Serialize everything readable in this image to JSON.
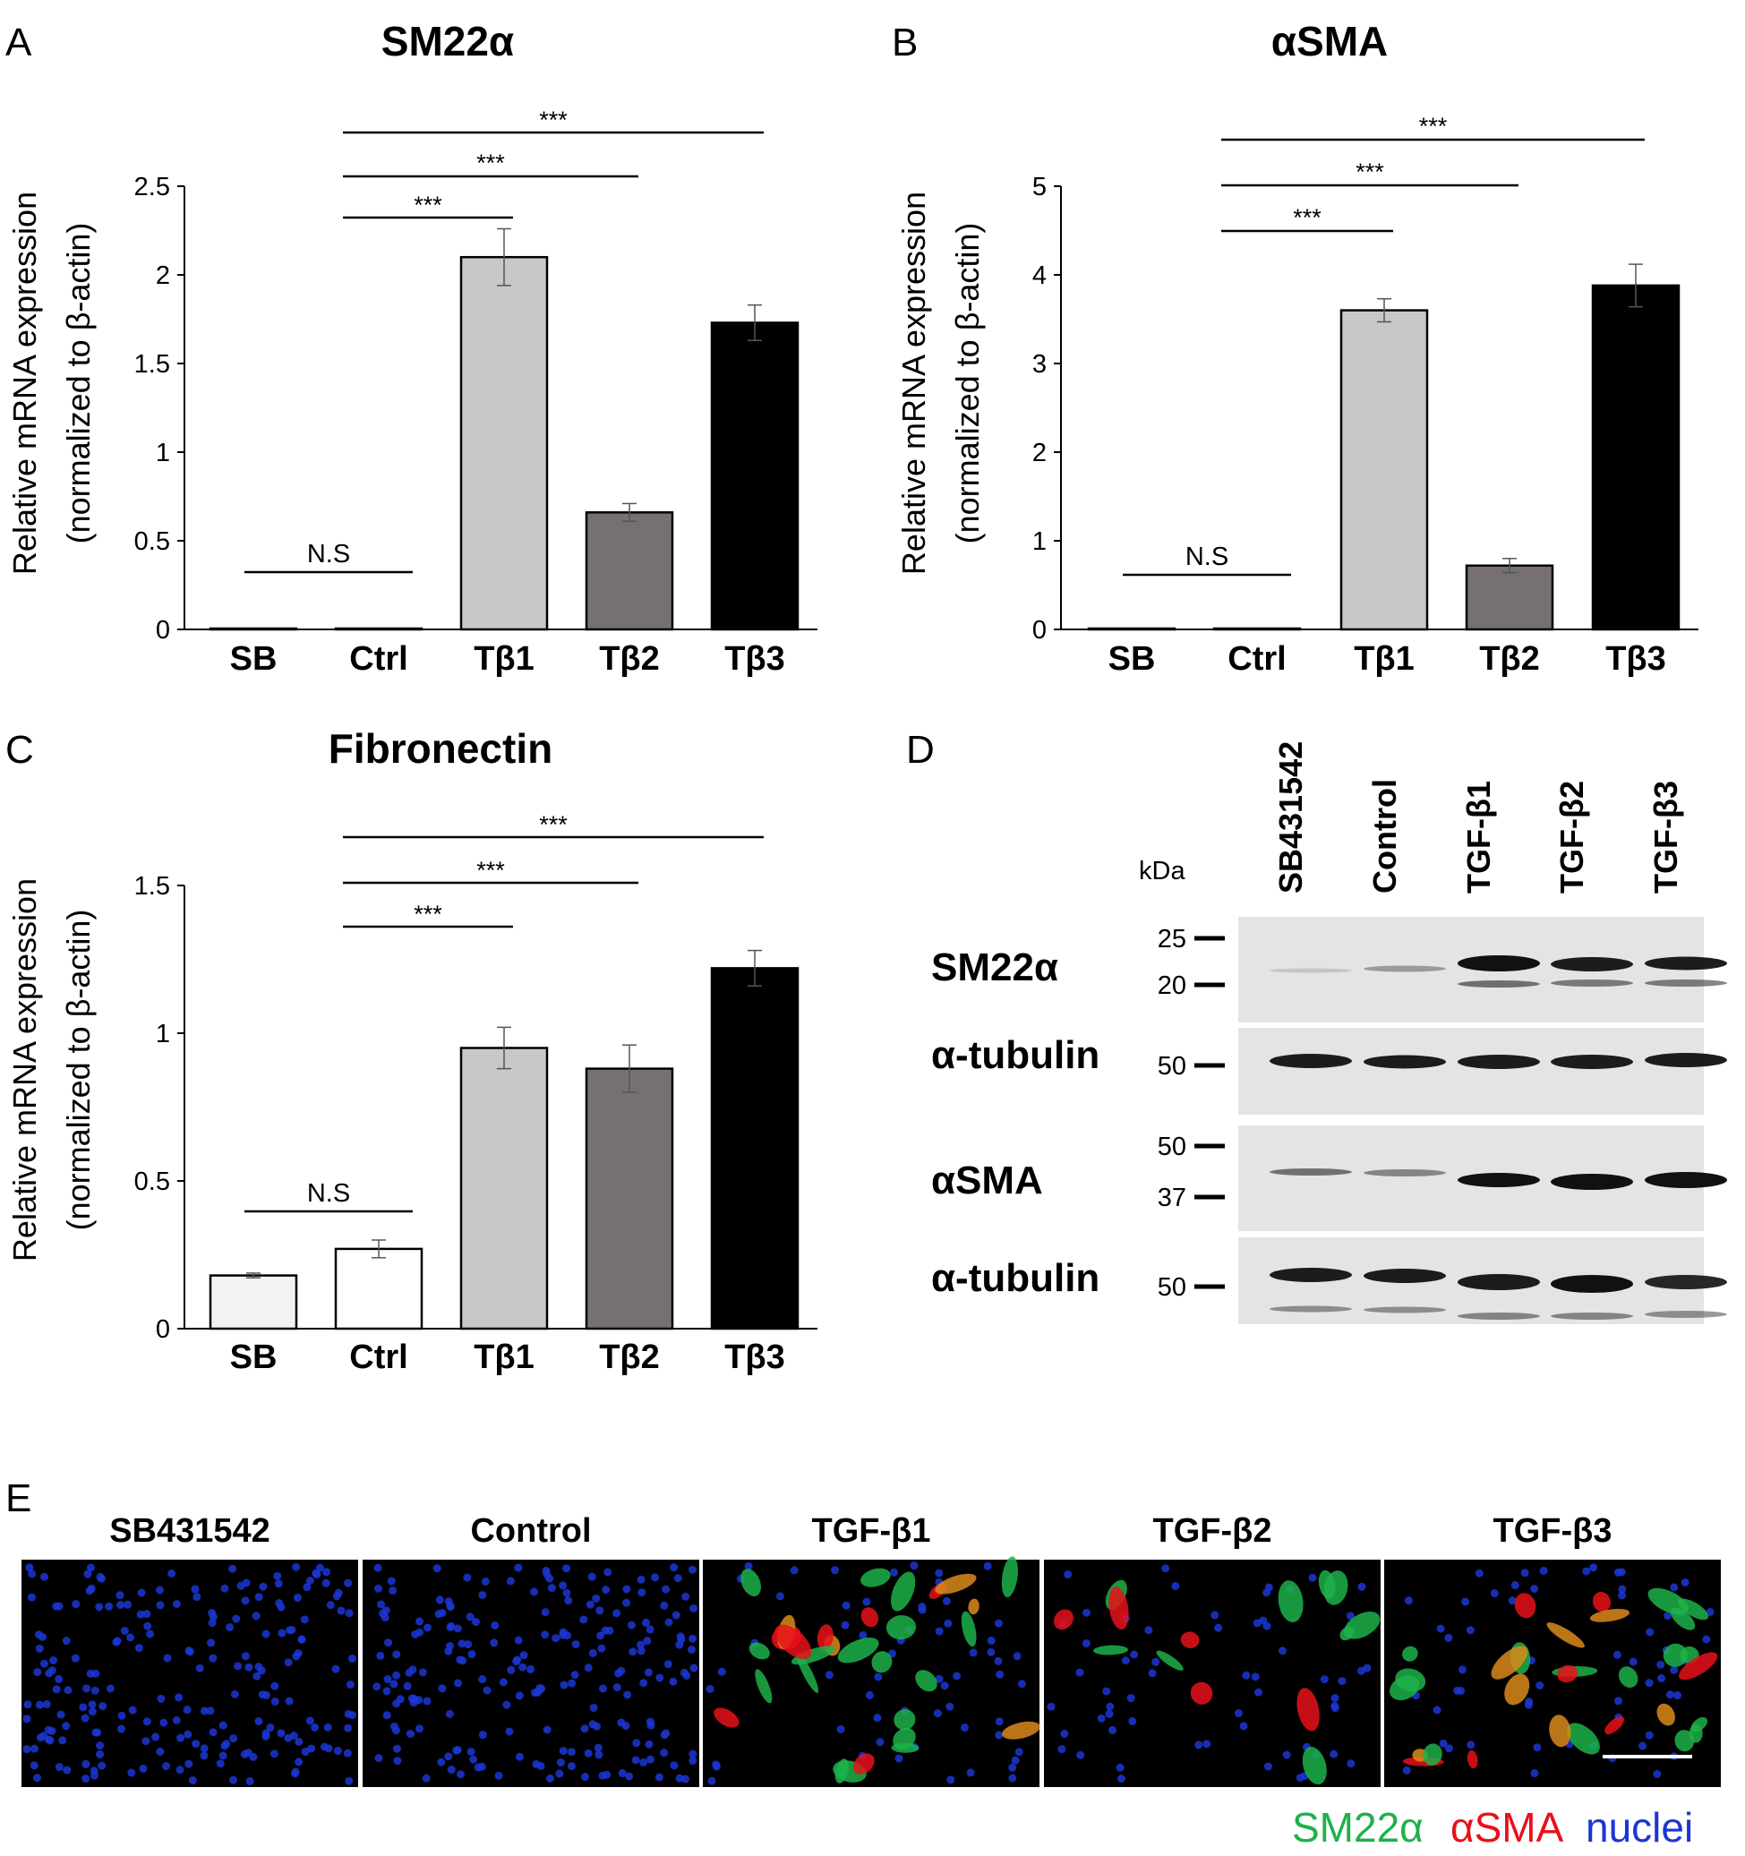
{
  "panel_labels": [
    "A",
    "B",
    "C",
    "D",
    "E"
  ],
  "colors": {
    "SB": "#f2f2f2",
    "Ctrl": "#ffffff",
    "Tβ1": "#c8c8c8",
    "Tβ2": "#767070",
    "Tβ3": "#000000",
    "green": "#1db24a",
    "red": "#e8101a",
    "blue": "#1b36d4"
  },
  "chart_data": [
    {
      "type": "bar",
      "title": "SM22α",
      "ylabel": "Relative mRNA expression",
      "ylabel2": "(normalized to β-actin)",
      "categories": [
        "SB",
        "Ctrl",
        "Tβ1",
        "Tβ2",
        "Tβ3"
      ],
      "values": [
        0.005,
        0.005,
        2.1,
        0.66,
        1.73
      ],
      "errors": [
        0,
        0,
        0.16,
        0.05,
        0.1
      ],
      "ylim": [
        0,
        2.5
      ],
      "yticks": [
        0,
        0.5,
        1,
        1.5,
        2,
        2.5
      ],
      "ytick_labels": [
        "0",
        "0.5",
        "1",
        "1.5",
        "2",
        "2.5"
      ],
      "significance": [
        {
          "from": "Ctrl",
          "to": "Tβ1",
          "label": "***"
        },
        {
          "from": "Ctrl",
          "to": "Tβ2",
          "label": "***"
        },
        {
          "from": "Ctrl",
          "to": "Tβ3",
          "label": "***"
        },
        {
          "from": "SB",
          "to": "Ctrl",
          "label": "N.S"
        }
      ]
    },
    {
      "type": "bar",
      "title": "αSMA",
      "ylabel": "Relative mRNA expression",
      "ylabel2": "(normalized to β-actin)",
      "categories": [
        "SB",
        "Ctrl",
        "Tβ1",
        "Tβ2",
        "Tβ3"
      ],
      "values": [
        0.01,
        0.01,
        3.6,
        0.72,
        3.88
      ],
      "errors": [
        0,
        0,
        0.13,
        0.08,
        0.24
      ],
      "ylim": [
        0,
        5
      ],
      "yticks": [
        0,
        1,
        2,
        3,
        4,
        5
      ],
      "ytick_labels": [
        "0",
        "1",
        "2",
        "3",
        "4",
        "5"
      ],
      "significance": [
        {
          "from": "Ctrl",
          "to": "Tβ1",
          "label": "***"
        },
        {
          "from": "Ctrl",
          "to": "Tβ2",
          "label": "***"
        },
        {
          "from": "Ctrl",
          "to": "Tβ3",
          "label": "***"
        },
        {
          "from": "SB",
          "to": "Ctrl",
          "label": "N.S"
        }
      ]
    },
    {
      "type": "bar",
      "title": "Fibronectin",
      "ylabel": "Relative mRNA expression",
      "ylabel2": "(normalized to β-actin)",
      "categories": [
        "SB",
        "Ctrl",
        "Tβ1",
        "Tβ2",
        "Tβ3"
      ],
      "values": [
        0.18,
        0.27,
        0.95,
        0.88,
        1.22
      ],
      "errors": [
        0.008,
        0.03,
        0.07,
        0.08,
        0.06
      ],
      "ylim": [
        0,
        1.5
      ],
      "yticks": [
        0,
        0.5,
        1,
        1.5
      ],
      "ytick_labels": [
        "0",
        "0.5",
        "1",
        "1.5"
      ],
      "significance": [
        {
          "from": "Ctrl",
          "to": "Tβ1",
          "label": "***"
        },
        {
          "from": "Ctrl",
          "to": "Tβ2",
          "label": "***"
        },
        {
          "from": "Ctrl",
          "to": "Tβ3",
          "label": "***"
        },
        {
          "from": "SB",
          "to": "Ctrl",
          "label": "N.S"
        }
      ]
    }
  ],
  "western_blot": {
    "kda_label": "kDa",
    "lanes": [
      "SB431542",
      "Control",
      "TGF-β1",
      "TGF-β2",
      "TGF-β3"
    ],
    "rows": [
      {
        "protein": "SM22α",
        "markers": [
          "25",
          "20"
        ]
      },
      {
        "protein": "α-tubulin",
        "markers": [
          "50"
        ]
      },
      {
        "protein": "αSMA",
        "markers": [
          "50",
          "37"
        ]
      },
      {
        "protein": "α-tubulin",
        "markers": [
          "50"
        ]
      }
    ]
  },
  "immunofluorescence": {
    "panels": [
      "SB431542",
      "Control",
      "TGF-β1",
      "TGF-β2",
      "TGF-β3"
    ],
    "legend": [
      "SM22α",
      "αSMA",
      "nuclei"
    ]
  }
}
